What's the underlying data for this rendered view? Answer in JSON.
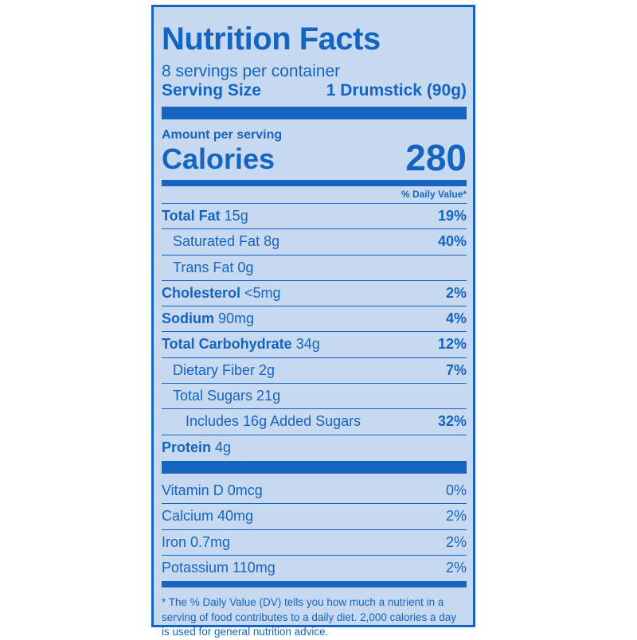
{
  "title": "Nutrition Facts",
  "servings_per_container": "8 servings per container",
  "serving_size": {
    "label": "Serving Size",
    "value": "1 Drumstick (90g)"
  },
  "amount_per_serving": "Amount per serving",
  "calories": {
    "label": "Calories",
    "value": "280"
  },
  "dv_header": "% Daily Value*",
  "nutrients": [
    {
      "name": "Total Fat",
      "amount": " 15g",
      "dv": "19%"
    },
    {
      "name": "Saturated Fat 8g",
      "amount": "",
      "dv": "40%"
    },
    {
      "name": "Trans Fat 0g",
      "amount": "",
      "dv": ""
    },
    {
      "name": "Cholesterol",
      "amount": " <5mg",
      "dv": "2%"
    },
    {
      "name": "Sodium",
      "amount": " 90mg",
      "dv": "4%"
    },
    {
      "name": "Total Carbohydrate",
      "amount": " 34g",
      "dv": "12%"
    },
    {
      "name": "Dietary Fiber 2g",
      "amount": "",
      "dv": "7%"
    },
    {
      "name": "Total Sugars 21g",
      "amount": "",
      "dv": ""
    },
    {
      "name": "Includes 16g Added Sugars",
      "amount": "",
      "dv": "32%"
    },
    {
      "name": "Protein",
      "amount": " 4g",
      "dv": ""
    }
  ],
  "vitamins": [
    {
      "name": "Vitamin D 0mcg",
      "dv": "0%"
    },
    {
      "name": "Calcium 40mg",
      "dv": "2%"
    },
    {
      "name": "Iron 0.7mg",
      "dv": "2%"
    },
    {
      "name": "Potassium 110mg",
      "dv": "2%"
    }
  ],
  "footnote": "* The % Daily Value (DV) tells you how much a nutrient in a serving of food contributes to a daily diet. 2,000 calories a day is used for general nutrition advice.",
  "colors": {
    "ink": "#1565c0",
    "background": "#c6d9f1"
  }
}
